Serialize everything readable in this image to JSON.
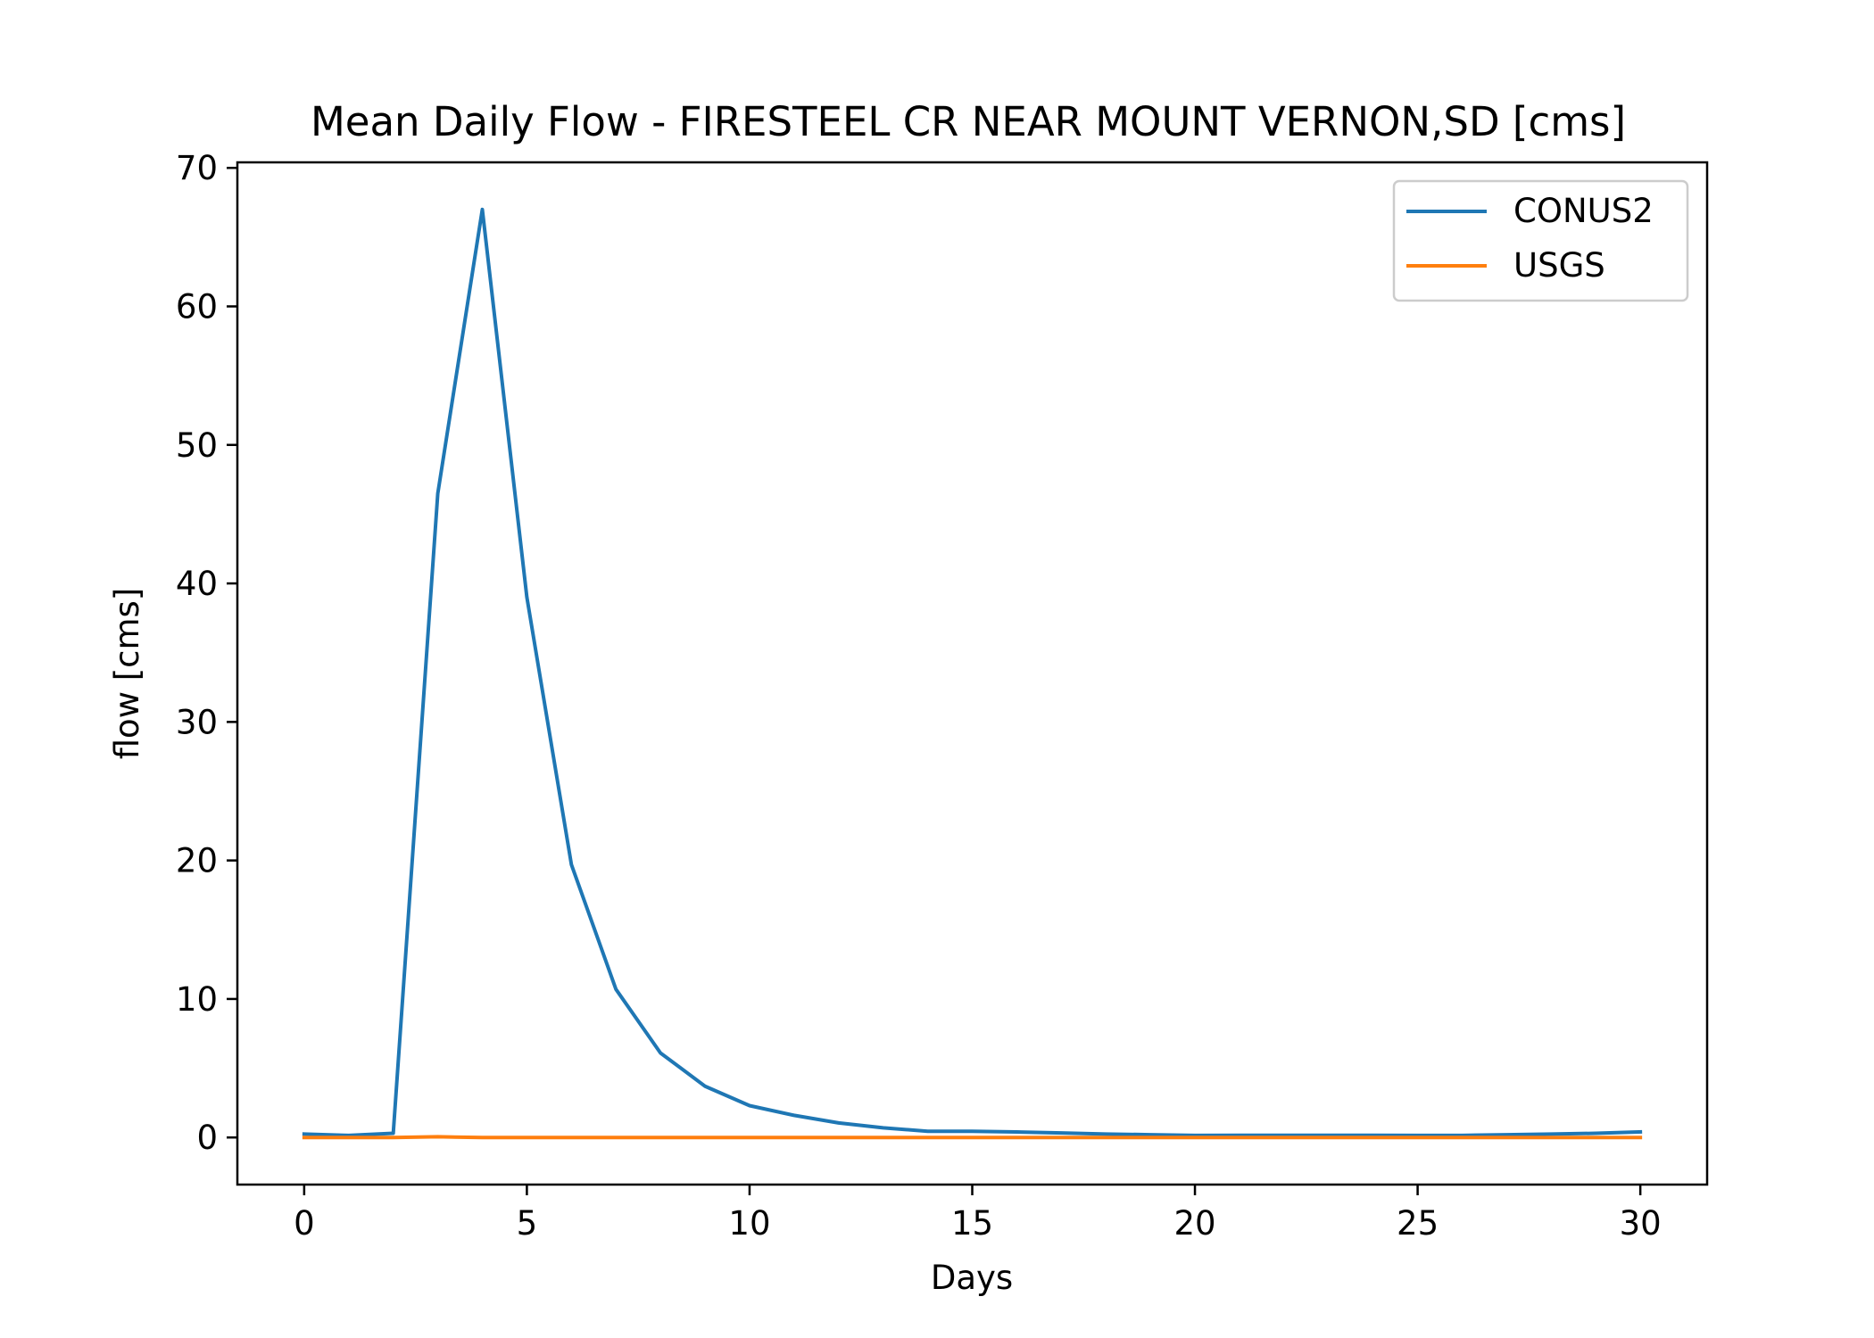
{
  "chart_data": {
    "type": "line",
    "title": "Mean Daily Flow - FIRESTEEL CR NEAR MOUNT VERNON,SD [cms]",
    "xlabel": "Days",
    "ylabel": "flow [cms]",
    "xlim": [
      -1.5,
      31.5
    ],
    "ylim": [
      -3.4,
      70.4
    ],
    "xticks": [
      0,
      5,
      10,
      15,
      20,
      25,
      30
    ],
    "yticks": [
      0,
      10,
      20,
      30,
      40,
      50,
      60,
      70
    ],
    "xtick_labels": [
      "0",
      "5",
      "10",
      "15",
      "20",
      "25",
      "30"
    ],
    "ytick_labels": [
      "0",
      "10",
      "20",
      "30",
      "40",
      "50",
      "60",
      "70"
    ],
    "grid": false,
    "legend_position": "top-right",
    "x": [
      0,
      1,
      2,
      3,
      4,
      5,
      6,
      7,
      8,
      9,
      10,
      11,
      12,
      13,
      14,
      15,
      16,
      17,
      18,
      19,
      20,
      21,
      22,
      23,
      24,
      25,
      26,
      27,
      28,
      29,
      30
    ],
    "series": [
      {
        "name": "CONUS2",
        "color": "#1f77b4",
        "values": [
          0.25,
          0.15,
          0.3,
          46.5,
          67.0,
          39.0,
          19.7,
          10.7,
          6.1,
          3.7,
          2.3,
          1.6,
          1.05,
          0.7,
          0.45,
          0.45,
          0.4,
          0.33,
          0.25,
          0.2,
          0.15,
          0.16,
          0.16,
          0.16,
          0.16,
          0.15,
          0.15,
          0.2,
          0.25,
          0.3,
          0.4
        ]
      },
      {
        "name": "USGS",
        "color": "#ff7f0e",
        "values": [
          0.0,
          0.0,
          0.0,
          0.05,
          0.0,
          0.0,
          0.0,
          0.0,
          0.0,
          0.0,
          0.0,
          0.0,
          0.0,
          0.0,
          0.0,
          0.0,
          0.0,
          0.0,
          0.0,
          0.0,
          0.0,
          0.0,
          0.0,
          0.0,
          0.0,
          0.0,
          0.0,
          0.0,
          0.0,
          0.0,
          0.0
        ]
      }
    ]
  }
}
